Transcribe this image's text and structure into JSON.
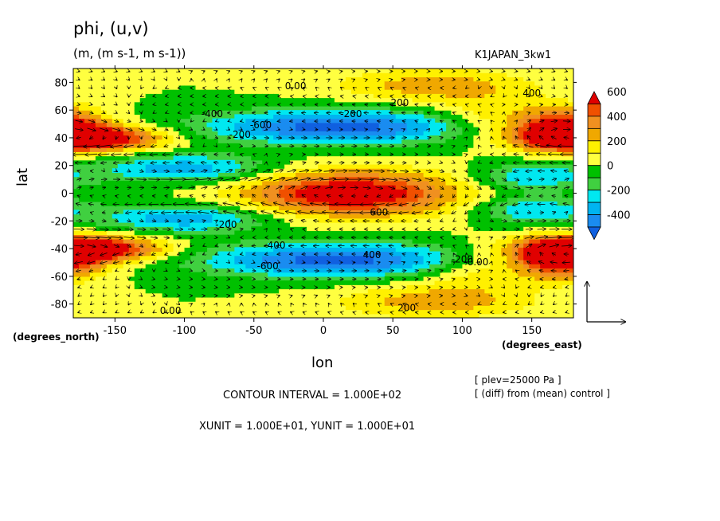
{
  "header": {
    "title": "phi, (u,v)",
    "subtitle": "(m, (m s-1, m s-1))",
    "run_name": "K1JAPAN_3kw1"
  },
  "axes": {
    "x_name": "lon",
    "y_name": "lat",
    "x_unit": "(degrees_east)",
    "y_unit": "(degrees_north)"
  },
  "info": {
    "level": "[ plev=25000 Pa ]",
    "diff": "[ (diff) from (mean) control ]",
    "contour_interval": "CONTOUR INTERVAL = 1.000E+02",
    "vector_units": "XUNIT = 1.000E+01, YUNIT = 1.000E+01"
  },
  "chart_data": {
    "type": "heatmap",
    "title": "phi, (u,v)",
    "xlabel": "lon",
    "ylabel": "lat",
    "xlim": [
      -180,
      180
    ],
    "ylim": [
      -90,
      90
    ],
    "x_ticks": [
      -150,
      -100,
      -50,
      0,
      50,
      100,
      150
    ],
    "y_ticks": [
      -80,
      -60,
      -40,
      -20,
      0,
      20,
      40,
      60,
      80
    ],
    "x_tick_labels": [
      "-150",
      "-100",
      "-50",
      "0",
      "50",
      "100",
      "150"
    ],
    "y_tick_labels": [
      "-80",
      "-60",
      "-40",
      "-20",
      "0",
      "20",
      "40",
      "60",
      "80"
    ],
    "contour_interval": 100,
    "colorbar": {
      "levels": [
        -500,
        -400,
        -300,
        -200,
        -100,
        0,
        100,
        200,
        300,
        400,
        500,
        600
      ],
      "labels": [
        "600",
        "400",
        "200",
        "0",
        "-200",
        "-400"
      ],
      "label_values": [
        600,
        400,
        200,
        0,
        -200,
        -400
      ],
      "colors": [
        "#1060e0",
        "#1a8cf0",
        "#00b4f0",
        "#00e8f0",
        "#40d040",
        "#00c000",
        "#ffff40",
        "#fff000",
        "#f0a800",
        "#f09020",
        "#f05000",
        "#e00000"
      ]
    },
    "contour_labels": [
      {
        "text": "0.00",
        "lon": -20,
        "lat": 75
      },
      {
        "text": "200",
        "lon": 55,
        "lat": 63
      },
      {
        "text": "-200",
        "lon": 20,
        "lat": 55
      },
      {
        "text": "400",
        "lon": 150,
        "lat": 70
      },
      {
        "text": "-400",
        "lon": -80,
        "lat": 55
      },
      {
        "text": "-600",
        "lon": -45,
        "lat": 47
      },
      {
        "text": "-200",
        "lon": -60,
        "lat": 40
      },
      {
        "text": "600",
        "lon": 40,
        "lat": -16
      },
      {
        "text": "-200",
        "lon": -70,
        "lat": -25
      },
      {
        "text": "-400",
        "lon": -35,
        "lat": -40
      },
      {
        "text": "400",
        "lon": 35,
        "lat": -47
      },
      {
        "text": "-200",
        "lon": 100,
        "lat": -50
      },
      {
        "text": "-0.00",
        "lon": 110,
        "lat": -52
      },
      {
        "text": "-600",
        "lon": -40,
        "lat": -55
      },
      {
        "text": "0.00",
        "lon": -110,
        "lat": -87
      },
      {
        "text": "200",
        "lon": 60,
        "lat": -85
      }
    ],
    "reference_vector": {
      "x_unit": 10,
      "y_unit": 10
    }
  }
}
